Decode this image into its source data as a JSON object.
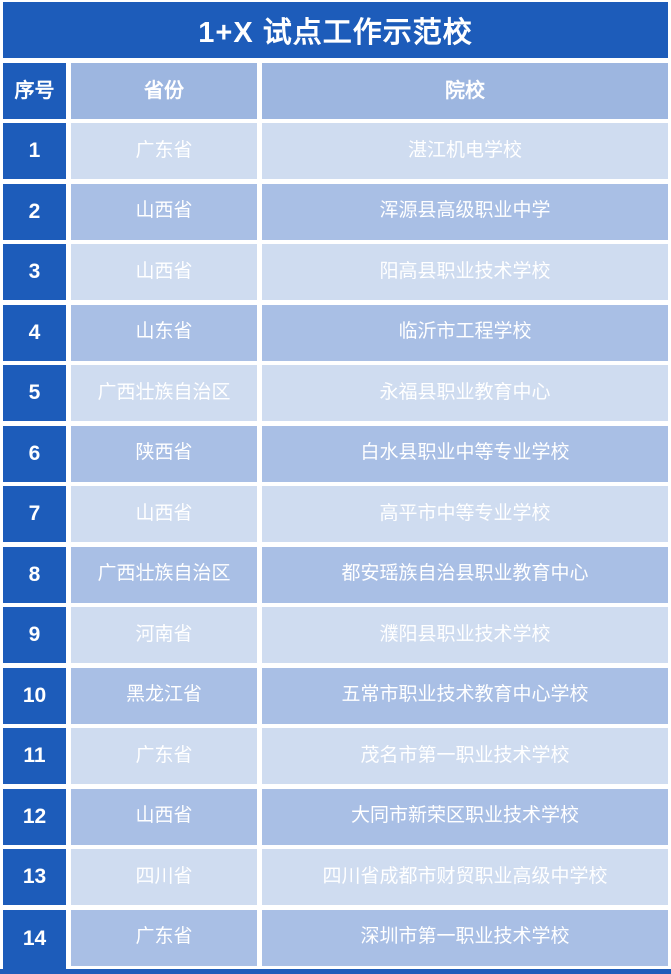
{
  "table": {
    "title": "1+X 试点工作示范校",
    "columns": [
      "序号",
      "省份",
      "院校"
    ],
    "rows": [
      {
        "no": "1",
        "province": "广东省",
        "school": "湛江机电学校"
      },
      {
        "no": "2",
        "province": "山西省",
        "school": "浑源县高级职业中学"
      },
      {
        "no": "3",
        "province": "山西省",
        "school": "阳高县职业技术学校"
      },
      {
        "no": "4",
        "province": "山东省",
        "school": "临沂市工程学校"
      },
      {
        "no": "5",
        "province": "广西壮族自治区",
        "school": "永福县职业教育中心"
      },
      {
        "no": "6",
        "province": "陕西省",
        "school": "白水县职业中等专业学校"
      },
      {
        "no": "7",
        "province": "山西省",
        "school": "高平市中等专业学校"
      },
      {
        "no": "8",
        "province": "广西壮族自治区",
        "school": "都安瑶族自治县职业教育中心"
      },
      {
        "no": "9",
        "province": "河南省",
        "school": "濮阳县职业技术学校"
      },
      {
        "no": "10",
        "province": "黑龙江省",
        "school": "五常市职业技术教育中心学校"
      },
      {
        "no": "11",
        "province": "广东省",
        "school": "茂名市第一职业技术学校"
      },
      {
        "no": "12",
        "province": "山西省",
        "school": "大同市新荣区职业技术学校"
      },
      {
        "no": "13",
        "province": "四川省",
        "school": "四川省成都市财贸职业高级中学校"
      },
      {
        "no": "14",
        "province": "广东省",
        "school": "深圳市第一职业技术学校"
      }
    ]
  },
  "colors": {
    "dark_blue": "#1d5cba",
    "header_blue": "#9db6e0",
    "row_light": "#cfdcf0",
    "row_medium": "#a9bfe5",
    "text_white": "#ffffff"
  }
}
